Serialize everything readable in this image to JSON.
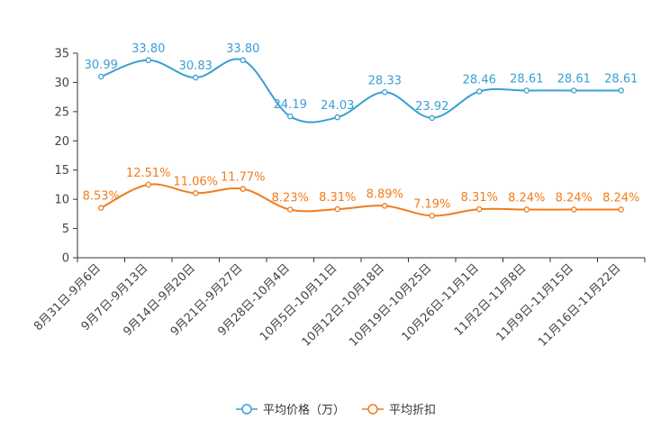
{
  "chart_data": {
    "type": "line",
    "title": "",
    "xlabel": "",
    "ylabel": "",
    "ylim": [
      0,
      35
    ],
    "yticks": [
      0,
      5,
      10,
      15,
      20,
      25,
      30,
      35
    ],
    "grid": false,
    "legend_position": "bottom",
    "categories": [
      "8月31日-9月6日",
      "9月7日-9月13日",
      "9月14日-9月20日",
      "9月21日-9月27日",
      "9月28日-10月4日",
      "10月5日-10月11日",
      "10月12日-10月18日",
      "10月19日-10月25日",
      "10月26日-11月1日",
      "11月2日-11月8日",
      "11月9日-11月15日",
      "11月16日-11月22日"
    ],
    "series": [
      {
        "name": "平均价格（万）",
        "color": "#3a9fd4",
        "values": [
          30.99,
          33.8,
          30.83,
          33.8,
          24.19,
          24.03,
          28.33,
          23.92,
          28.46,
          28.61,
          28.61,
          28.61
        ],
        "labels": [
          "30.99",
          "33.80",
          "30.83",
          "33.80",
          "24.19",
          "24.03",
          "28.33",
          "23.92",
          "28.46",
          "28.61",
          "28.61",
          "28.61"
        ]
      },
      {
        "name": "平均折扣",
        "color": "#f07c1c",
        "values": [
          8.53,
          12.51,
          11.06,
          11.77,
          8.23,
          8.31,
          8.89,
          7.19,
          8.31,
          8.24,
          8.24,
          8.24
        ],
        "labels": [
          "8.53%",
          "12.51%",
          "11.06%",
          "11.77%",
          "8.23%",
          "8.31%",
          "8.89%",
          "7.19%",
          "8.31%",
          "8.24%",
          "8.24%",
          "8.24%"
        ]
      }
    ]
  }
}
